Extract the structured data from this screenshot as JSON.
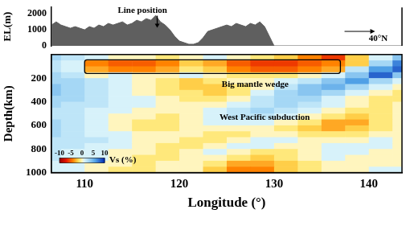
{
  "chart_data": [
    {
      "type": "area",
      "x": [
        106.5,
        107,
        107.5,
        108,
        108.5,
        109,
        109.5,
        110,
        110.5,
        111,
        111.5,
        112,
        112.5,
        113,
        113.5,
        114,
        114.5,
        115,
        115.5,
        116,
        116.5,
        117,
        117.5,
        118,
        118.5,
        119,
        119.5,
        120,
        120.5,
        121,
        121.5,
        122,
        122.5,
        123,
        123.5,
        124,
        124.5,
        125,
        125.5,
        126,
        126.5,
        127,
        127.5,
        128,
        128.5,
        129,
        129.5,
        130,
        143.5
      ],
      "values": [
        1300,
        1500,
        1300,
        1200,
        1100,
        1200,
        1100,
        1000,
        1200,
        1100,
        1300,
        1200,
        1400,
        1300,
        1400,
        1500,
        1300,
        1400,
        1600,
        1500,
        1700,
        1600,
        1900,
        1500,
        1300,
        1000,
        600,
        300,
        200,
        100,
        100,
        200,
        500,
        900,
        1000,
        1100,
        1200,
        1300,
        1200,
        1400,
        1300,
        1200,
        1400,
        1300,
        1500,
        1200,
        600,
        0,
        0
      ],
      "color": "#5f5f5f",
      "xlim": [
        106.5,
        143.5
      ],
      "ylim": [
        0,
        2400
      ],
      "yticks": [
        0,
        1000,
        2000
      ],
      "y_label": "EL(m)",
      "tick_labels": "y",
      "grid": false,
      "annotations": [
        {
          "text": "Line position",
          "x": 116.1,
          "y": 2180,
          "marker": "arrow_down"
        },
        {
          "text": "40°N",
          "x": 141,
          "y": 450,
          "marker": "arrow_right"
        }
      ]
    },
    {
      "type": "heatmap",
      "lon_bins": [
        105,
        107.5,
        110,
        112.5,
        115,
        117.5,
        120,
        122.5,
        125,
        127.5,
        130,
        132.5,
        135,
        137.5,
        140,
        142.5,
        145
      ],
      "depth_bins": [
        0,
        50,
        100,
        150,
        200,
        250,
        300,
        350,
        400,
        450,
        500,
        550,
        600,
        650,
        700,
        750,
        800,
        850,
        900,
        950,
        1000
      ],
      "cells": [
        [
          3,
          2,
          1,
          0,
          0,
          -1,
          0,
          1,
          0,
          -1,
          -2,
          -4,
          -6,
          -2,
          1,
          4
        ],
        [
          2,
          1,
          -4,
          -5,
          -5,
          -4,
          -2,
          -3,
          -5,
          -6,
          -6,
          -5,
          -4,
          -2,
          3,
          7
        ],
        [
          2,
          1,
          -3,
          -4,
          -4,
          -3,
          -1,
          -2,
          -4,
          -5,
          -5,
          -4,
          -3,
          2,
          6,
          8
        ],
        [
          3,
          2,
          0,
          1,
          0,
          0,
          1,
          0,
          -1,
          -1,
          -1,
          0,
          1,
          4,
          8,
          4
        ],
        [
          3,
          3,
          2,
          1,
          0,
          -1,
          -2,
          -1,
          0,
          0,
          1,
          2,
          4,
          6,
          3,
          1
        ],
        [
          4,
          3,
          2,
          1,
          0,
          -1,
          -2,
          -2,
          -1,
          0,
          2,
          4,
          5,
          3,
          1,
          0
        ],
        [
          4,
          3,
          2,
          1,
          0,
          -1,
          -1,
          -2,
          -1,
          1,
          3,
          4,
          3,
          1,
          0,
          -1
        ],
        [
          3,
          3,
          2,
          1,
          1,
          0,
          -1,
          -1,
          0,
          2,
          3,
          3,
          1,
          0,
          -1,
          -1
        ],
        [
          3,
          2,
          2,
          1,
          1,
          0,
          0,
          0,
          1,
          2,
          3,
          2,
          1,
          0,
          -1,
          0
        ],
        [
          2,
          2,
          1,
          1,
          0,
          0,
          0,
          1,
          2,
          3,
          2,
          1,
          0,
          -1,
          -1,
          0
        ],
        [
          2,
          2,
          1,
          0,
          0,
          -1,
          0,
          1,
          2,
          2,
          1,
          0,
          -1,
          -2,
          -1,
          0
        ],
        [
          3,
          2,
          1,
          0,
          -1,
          -1,
          0,
          1,
          1,
          1,
          0,
          -1,
          -3,
          -3,
          -1,
          0
        ],
        [
          3,
          2,
          1,
          0,
          -1,
          -1,
          0,
          0,
          0,
          0,
          -1,
          -2,
          -3,
          -2,
          -1,
          0
        ],
        [
          3,
          2,
          1,
          1,
          0,
          0,
          0,
          -1,
          -1,
          0,
          0,
          -1,
          -1,
          -1,
          0,
          0
        ],
        [
          2,
          2,
          2,
          1,
          0,
          0,
          -1,
          -1,
          0,
          1,
          1,
          0,
          0,
          0,
          1,
          0
        ],
        [
          2,
          2,
          1,
          1,
          0,
          -1,
          -1,
          0,
          1,
          1,
          0,
          0,
          1,
          1,
          1,
          0
        ],
        [
          2,
          1,
          1,
          0,
          0,
          -1,
          0,
          1,
          0,
          -1,
          -1,
          0,
          1,
          1,
          0,
          0
        ],
        [
          2,
          1,
          1,
          0,
          -1,
          -1,
          0,
          0,
          -1,
          -2,
          -1,
          0,
          1,
          0,
          0,
          0
        ],
        [
          1,
          1,
          0,
          0,
          -1,
          0,
          0,
          -1,
          -3,
          -3,
          -2,
          -1,
          0,
          0,
          0,
          0
        ],
        [
          1,
          1,
          0,
          -1,
          -1,
          0,
          0,
          -2,
          -4,
          -4,
          -2,
          -1,
          0,
          0,
          1,
          1
        ]
      ],
      "xlim": [
        106.5,
        143.5
      ],
      "ylim": [
        1000,
        0
      ],
      "xticks": [
        110,
        120,
        130,
        140
      ],
      "yticks": [
        200,
        400,
        600,
        800,
        1000
      ],
      "x_label": "Longitude (°)",
      "y_label": "Depth(km)",
      "grid": false,
      "colorbar": {
        "range": [
          -10,
          10
        ],
        "ticks": [
          -10,
          -5,
          0,
          5,
          10
        ],
        "label": "Vs (%)"
      },
      "box": {
        "x": [
          110,
          137
        ],
        "y": [
          45,
          160
        ]
      },
      "annotations": [
        {
          "text": "Big mantle wedge",
          "x": 128,
          "y": 255
        },
        {
          "text": "West Pacific subduction",
          "x": 129,
          "y": 535
        }
      ]
    }
  ]
}
